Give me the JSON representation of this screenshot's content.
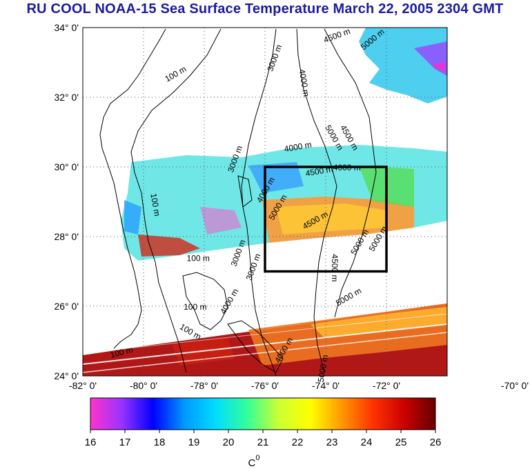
{
  "title": "RU COOL  NOAA-15 Sea Surface Temperature March 22, 2005 2304 GMT",
  "map": {
    "lat_labels": [
      "34° 0'",
      "32° 0'",
      "30° 0'",
      "28° 0'",
      "26° 0'",
      "24° 0'"
    ],
    "lon_labels": [
      "-82° 0'",
      "-80° 0'",
      "-78° 0'",
      "-76° 0'",
      "-74° 0'",
      "-72° 0'",
      "-70° 0'"
    ],
    "lat_range": [
      24,
      34
    ],
    "lon_range": [
      -82,
      -70
    ],
    "grid": "dotted",
    "study_box": {
      "lon": [
        -76,
        -72
      ],
      "lat": [
        27,
        30
      ]
    },
    "contour_labels": [
      {
        "text": "100 m",
        "lon": -78.9,
        "lat": 32.6,
        "rot": -30
      },
      {
        "text": "100 m",
        "lon": -79.7,
        "lat": 28.9,
        "rot": 80
      },
      {
        "text": "100 m",
        "lon": -78.2,
        "lat": 27.3,
        "rot": 0
      },
      {
        "text": "100 m",
        "lon": -78.3,
        "lat": 25.9,
        "rot": 0
      },
      {
        "text": "100 m",
        "lon": -78.5,
        "lat": 25.2,
        "rot": 30
      },
      {
        "text": "100 m",
        "lon": -80.7,
        "lat": 24.6,
        "rot": -15
      },
      {
        "text": "3000 m",
        "lon": -75.6,
        "lat": 33.1,
        "rot": -70
      },
      {
        "text": "4000 m",
        "lon": -74.8,
        "lat": 32.4,
        "rot": 80
      },
      {
        "text": "4500 m",
        "lon": -73.6,
        "lat": 33.7,
        "rot": -20
      },
      {
        "text": "5000 m",
        "lon": -72.4,
        "lat": 33.6,
        "rot": -40
      },
      {
        "text": "5000 m",
        "lon": -73.8,
        "lat": 30.8,
        "rot": 60
      },
      {
        "text": "4500 m",
        "lon": -73.3,
        "lat": 30.8,
        "rot": 60
      },
      {
        "text": "3000 m",
        "lon": -76.9,
        "lat": 30.2,
        "rot": -70
      },
      {
        "text": "4000 m",
        "lon": -74.9,
        "lat": 30.5,
        "rot": -10
      },
      {
        "text": "4500 m",
        "lon": -74.2,
        "lat": 29.8,
        "rot": -10
      },
      {
        "text": "4000 m",
        "lon": -73.3,
        "lat": 29.9,
        "rot": 0
      },
      {
        "text": "4000 m",
        "lon": -75.9,
        "lat": 29.3,
        "rot": -60
      },
      {
        "text": "5000 m",
        "lon": -75.5,
        "lat": 28.8,
        "rot": -60
      },
      {
        "text": "4500 m",
        "lon": -74.3,
        "lat": 28.4,
        "rot": -30
      },
      {
        "text": "5000 m",
        "lon": -72.8,
        "lat": 27.8,
        "rot": -60
      },
      {
        "text": "5000 m",
        "lon": -72.2,
        "lat": 27.9,
        "rot": -60
      },
      {
        "text": "4500 m",
        "lon": -73.8,
        "lat": 27.1,
        "rot": 90
      },
      {
        "text": "3000 m",
        "lon": -76.8,
        "lat": 27.5,
        "rot": -70
      },
      {
        "text": "3000 m",
        "lon": -76.3,
        "lat": 27.1,
        "rot": -70
      },
      {
        "text": "4000 m",
        "lon": -77.1,
        "lat": 26.1,
        "rot": -60
      },
      {
        "text": "5000 m",
        "lon": -73.2,
        "lat": 26.2,
        "rot": -30
      },
      {
        "text": "4000 m",
        "lon": -75.3,
        "lat": 24.7,
        "rot": -60
      },
      {
        "text": "5000 m",
        "lon": -74.0,
        "lat": 24.2,
        "rot": -80
      }
    ]
  },
  "colorbar": {
    "ticks": [
      "16",
      "17",
      "18",
      "19",
      "20",
      "21",
      "22",
      "23",
      "24",
      "25",
      "26"
    ],
    "min": 16,
    "max": 26,
    "unit_label": "C",
    "unit_sup": "0",
    "colors": [
      "#ff33cc",
      "#9933ff",
      "#0000ff",
      "#0099ff",
      "#00ddff",
      "#33ff99",
      "#ccff33",
      "#ffff00",
      "#ff9900",
      "#ff3300",
      "#cc0000",
      "#660000"
    ]
  }
}
